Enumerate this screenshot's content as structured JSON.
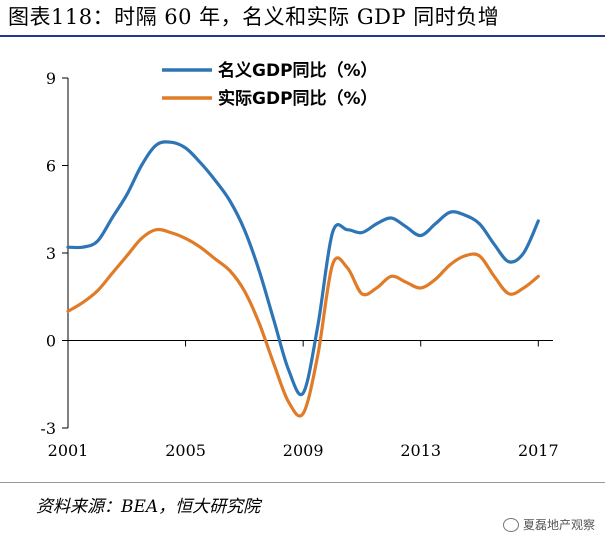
{
  "title": "图表118：时隔 60 年，名义和实际 GDP 同时负增",
  "source": "资料来源：BEA，恒大研究院",
  "watermark": "夏磊地产观察",
  "colors": {
    "nominal": "#2e75b6",
    "real": "#e07b28",
    "axis": "#000000",
    "title_rule": "#1f3a8a"
  },
  "chart_data": {
    "type": "line",
    "xlim": [
      2001,
      2017.5
    ],
    "ylim": [
      -3,
      9
    ],
    "yticks": [
      -3,
      0,
      3,
      6,
      9
    ],
    "xticks": [
      2001,
      2005,
      2009,
      2013,
      2017
    ],
    "ytick_labels": [
      "-3",
      "0",
      "3",
      "6",
      "9"
    ],
    "xtick_labels": [
      "2001",
      "2005",
      "2009",
      "2013",
      "2017"
    ],
    "legend_position": "top",
    "series": [
      {
        "name": "名义GDP同比（%）",
        "color": "#2e75b6",
        "x": [
          2001,
          2001.5,
          2002,
          2002.5,
          2003,
          2003.5,
          2004,
          2004.5,
          2005,
          2005.5,
          2006,
          2006.5,
          2007,
          2007.5,
          2008,
          2008.5,
          2009,
          2009.5,
          2010,
          2010.5,
          2011,
          2011.5,
          2012,
          2012.5,
          2013,
          2013.5,
          2014,
          2014.5,
          2015,
          2015.5,
          2016,
          2016.5,
          2017
        ],
        "values": [
          3.2,
          3.2,
          3.4,
          4.2,
          5.0,
          6.0,
          6.7,
          6.8,
          6.6,
          6.1,
          5.5,
          4.8,
          3.8,
          2.4,
          0.7,
          -1.0,
          -1.8,
          0.5,
          3.7,
          3.8,
          3.7,
          4.0,
          4.2,
          3.9,
          3.6,
          4.0,
          4.4,
          4.3,
          4.0,
          3.3,
          2.7,
          3.0,
          4.1
        ]
      },
      {
        "name": "实际GDP同比（%）",
        "color": "#e07b28",
        "x": [
          2001,
          2001.5,
          2002,
          2002.5,
          2003,
          2003.5,
          2004,
          2004.5,
          2005,
          2005.5,
          2006,
          2006.5,
          2007,
          2007.5,
          2008,
          2008.5,
          2009,
          2009.5,
          2010,
          2010.5,
          2011,
          2011.5,
          2012,
          2012.5,
          2013,
          2013.5,
          2014,
          2014.5,
          2015,
          2015.5,
          2016,
          2016.5,
          2017
        ],
        "values": [
          1.0,
          1.3,
          1.7,
          2.3,
          2.9,
          3.5,
          3.8,
          3.7,
          3.5,
          3.2,
          2.8,
          2.4,
          1.7,
          0.6,
          -0.8,
          -2.1,
          -2.5,
          -0.5,
          2.6,
          2.5,
          1.6,
          1.8,
          2.2,
          2.0,
          1.8,
          2.1,
          2.6,
          2.9,
          2.9,
          2.2,
          1.6,
          1.8,
          2.2
        ]
      }
    ]
  }
}
